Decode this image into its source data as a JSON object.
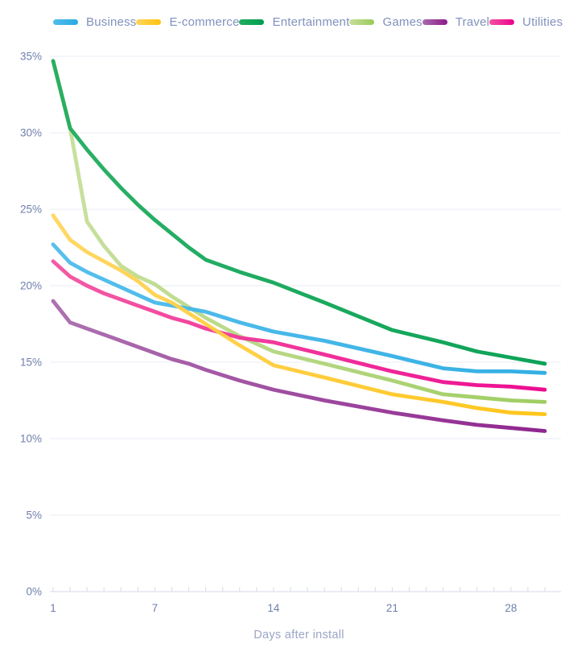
{
  "chart_data": {
    "type": "line",
    "title": "",
    "xlabel": "Days after install",
    "ylabel": "",
    "x_domain": [
      1,
      30
    ],
    "y_domain": [
      0,
      35
    ],
    "grid": true,
    "legend_position": "top",
    "y_tick_labels": [
      "0%",
      "5%",
      "10%",
      "15%",
      "20%",
      "25%",
      "30%",
      "35%"
    ],
    "x_tick_days": [
      1,
      7,
      14,
      21,
      28
    ],
    "x_tick_labels": [
      "1",
      "7",
      "14",
      "21",
      "28"
    ],
    "days": [
      1,
      2,
      3,
      4,
      5,
      6,
      7,
      8,
      9,
      10,
      12,
      14,
      17,
      21,
      24,
      26,
      28,
      30
    ],
    "series": [
      {
        "name": "Business",
        "color": "#29ABE2",
        "color_light": "#4FBCEC",
        "values": [
          22.7,
          21.5,
          20.9,
          20.4,
          19.9,
          19.4,
          18.9,
          18.7,
          18.5,
          18.3,
          17.6,
          17.0,
          16.4,
          15.4,
          14.6,
          14.4,
          14.4,
          14.3
        ]
      },
      {
        "name": "E-commerce",
        "color": "#FFC20E",
        "color_light": "#FFD55C",
        "values": [
          24.6,
          23.0,
          22.2,
          21.6,
          21.0,
          20.3,
          19.4,
          18.9,
          18.2,
          17.5,
          16.1,
          14.8,
          14.0,
          12.9,
          12.4,
          12.0,
          11.7,
          11.6
        ]
      },
      {
        "name": "Entertainment",
        "color": "#009E4F",
        "color_light": "#22AC5F",
        "values": [
          34.7,
          30.3,
          28.9,
          27.6,
          26.4,
          25.3,
          24.3,
          23.4,
          22.5,
          21.7,
          20.9,
          20.2,
          18.9,
          17.1,
          16.3,
          15.7,
          15.3,
          14.9
        ]
      },
      {
        "name": "Games",
        "color": "#9ACA5A",
        "color_light": "#C7DF9B",
        "values": [
          34.7,
          30.3,
          24.2,
          22.6,
          21.3,
          20.6,
          20.1,
          19.3,
          18.6,
          17.9,
          16.7,
          15.7,
          14.9,
          13.8,
          12.9,
          12.7,
          12.5,
          12.4
        ]
      },
      {
        "name": "Travel",
        "color": "#8A1A89",
        "color_light": "#A96BAD",
        "values": [
          19.0,
          17.6,
          17.2,
          16.8,
          16.4,
          16.0,
          15.6,
          15.2,
          14.9,
          14.5,
          13.8,
          13.2,
          12.5,
          11.7,
          11.2,
          10.9,
          10.7,
          10.5
        ]
      },
      {
        "name": "Utilities",
        "color": "#EC008C",
        "color_light": "#F4539F",
        "values": [
          21.6,
          20.6,
          20.0,
          19.5,
          19.1,
          18.7,
          18.3,
          17.9,
          17.6,
          17.2,
          16.6,
          16.3,
          15.5,
          14.4,
          13.7,
          13.5,
          13.4,
          13.2
        ]
      }
    ],
    "colors": {
      "grid": "#E9EDF4",
      "axis": "#D4DBE8",
      "tick_label": "#6F7FAC",
      "legend_label": "#8191BD",
      "axis_title": "#9AA6C6",
      "background": "#FFFFFF"
    }
  }
}
